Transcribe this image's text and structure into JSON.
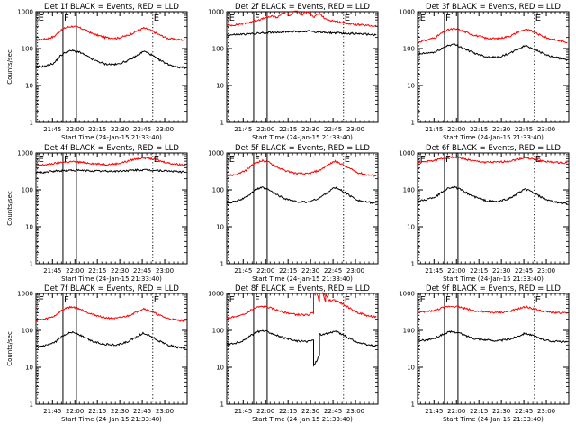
{
  "chart_data": {
    "type": "line",
    "grid": {
      "rows": 3,
      "cols": 3
    },
    "time_ticks": [
      "21:45",
      "22:00",
      "22:15",
      "22:30",
      "22:45",
      "23:00"
    ],
    "time_tick_minutes": [
      105,
      120,
      135,
      150,
      165,
      180
    ],
    "xlim_minutes": [
      94,
      195
    ],
    "yscale": "log",
    "ylim": [
      1,
      1000
    ],
    "y_ticks": [
      1,
      10,
      100,
      1000
    ],
    "y_tick_labels": [
      "1",
      "10",
      "100",
      "1000"
    ],
    "ylabel": "Counts/sec",
    "xlabel": "Start Time (24-Jan-15 21:33:40)",
    "series_colors": {
      "events": "#000000",
      "lld": "#ff0000"
    },
    "markers": [
      {
        "label": "E",
        "minute": 95,
        "style": "dotted"
      },
      {
        "label": "F",
        "minute": 112,
        "style": "solid"
      },
      {
        "label": "",
        "minute": 121,
        "style": "solid"
      },
      {
        "label": "E",
        "minute": 172,
        "style": "dotted"
      }
    ],
    "panels": [
      {
        "title": "Det 1f BLACK = Events, RED = LLD",
        "show_ylabel": true,
        "events": {
          "x": [
            94,
            100,
            106,
            110,
            114,
            118,
            122,
            126,
            132,
            140,
            148,
            156,
            162,
            166,
            170,
            176,
            182,
            188,
            194
          ],
          "y": [
            32,
            33,
            40,
            62,
            80,
            88,
            82,
            70,
            50,
            38,
            37,
            48,
            66,
            85,
            72,
            50,
            38,
            32,
            30
          ]
        },
        "lld": {
          "x": [
            94,
            100,
            106,
            110,
            114,
            118,
            122,
            126,
            132,
            140,
            148,
            156,
            162,
            166,
            170,
            176,
            182,
            188,
            194
          ],
          "y": [
            170,
            180,
            210,
            300,
            370,
            400,
            380,
            330,
            250,
            200,
            190,
            230,
            310,
            360,
            320,
            240,
            190,
            175,
            170
          ]
        }
      },
      {
        "title": "Det 2f BLACK = Events, RED = LLD",
        "show_ylabel": false,
        "events": {
          "x": [
            94,
            100,
            106,
            112,
            118,
            124,
            130,
            136,
            142,
            148,
            154,
            160,
            166,
            172,
            178,
            184,
            190,
            194
          ],
          "y": [
            230,
            240,
            245,
            255,
            265,
            275,
            280,
            290,
            285,
            300,
            280,
            270,
            265,
            260,
            255,
            250,
            240,
            235
          ]
        },
        "lld": {
          "x": [
            94,
            100,
            106,
            112,
            118,
            124,
            128,
            132,
            136,
            140,
            144,
            148,
            152,
            156,
            160,
            164,
            170,
            176,
            182,
            188,
            194
          ],
          "y": [
            420,
            440,
            480,
            560,
            640,
            750,
            700,
            1000,
            750,
            1200,
            800,
            1050,
            700,
            900,
            620,
            580,
            520,
            470,
            440,
            420,
            410
          ]
        }
      },
      {
        "title": "Det 3f BLACK = Events, RED = LLD",
        "show_ylabel": false,
        "events": {
          "x": [
            94,
            100,
            106,
            110,
            114,
            118,
            122,
            126,
            132,
            140,
            148,
            156,
            162,
            166,
            170,
            176,
            182,
            188,
            194
          ],
          "y": [
            70,
            75,
            80,
            100,
            120,
            130,
            115,
            95,
            75,
            60,
            58,
            75,
            100,
            120,
            105,
            80,
            62,
            55,
            50
          ]
        },
        "lld": {
          "x": [
            94,
            100,
            106,
            110,
            114,
            118,
            122,
            126,
            132,
            140,
            148,
            156,
            162,
            166,
            170,
            176,
            182,
            188,
            194
          ],
          "y": [
            150,
            170,
            200,
            260,
            320,
            340,
            320,
            280,
            230,
            190,
            185,
            220,
            290,
            330,
            300,
            230,
            185,
            165,
            150
          ]
        }
      },
      {
        "title": "Det 4f BLACK = Events, RED = LLD",
        "show_ylabel": true,
        "events": {
          "x": [
            94,
            100,
            106,
            112,
            118,
            124,
            130,
            136,
            142,
            148,
            154,
            160,
            166,
            172,
            178,
            184,
            190,
            194
          ],
          "y": [
            290,
            300,
            320,
            330,
            340,
            335,
            330,
            325,
            320,
            320,
            330,
            340,
            345,
            340,
            330,
            320,
            310,
            300
          ]
        },
        "lld": {
          "x": [
            94,
            100,
            106,
            112,
            118,
            124,
            130,
            136,
            142,
            148,
            154,
            160,
            166,
            172,
            178,
            184,
            190,
            194
          ],
          "y": [
            450,
            480,
            520,
            560,
            580,
            560,
            530,
            500,
            490,
            510,
            580,
            680,
            740,
            690,
            590,
            520,
            490,
            470
          ]
        }
      },
      {
        "title": "Det 5f BLACK = Events, RED = LLD",
        "show_ylabel": false,
        "events": {
          "x": [
            94,
            100,
            106,
            110,
            114,
            118,
            122,
            126,
            132,
            140,
            148,
            156,
            162,
            166,
            170,
            176,
            182,
            188,
            194
          ],
          "y": [
            45,
            48,
            60,
            80,
            105,
            115,
            100,
            80,
            60,
            48,
            46,
            60,
            90,
            115,
            100,
            70,
            52,
            46,
            44
          ]
        },
        "lld": {
          "x": [
            94,
            100,
            106,
            110,
            114,
            118,
            122,
            126,
            132,
            140,
            148,
            156,
            162,
            166,
            170,
            176,
            182,
            188,
            194
          ],
          "y": [
            240,
            260,
            320,
            430,
            560,
            620,
            560,
            450,
            340,
            280,
            270,
            340,
            480,
            600,
            520,
            380,
            290,
            255,
            240
          ]
        }
      },
      {
        "title": "Det 6f BLACK = Events, RED = LLD",
        "show_ylabel": false,
        "events": {
          "x": [
            94,
            100,
            106,
            110,
            114,
            118,
            122,
            126,
            132,
            140,
            148,
            156,
            162,
            166,
            170,
            176,
            182,
            188,
            194
          ],
          "y": [
            48,
            55,
            65,
            85,
            110,
            120,
            105,
            85,
            65,
            50,
            48,
            60,
            85,
            105,
            90,
            65,
            50,
            45,
            42
          ]
        },
        "lld": {
          "x": [
            94,
            100,
            106,
            110,
            114,
            118,
            122,
            126,
            132,
            140,
            148,
            156,
            162,
            166,
            170,
            176,
            182,
            188,
            194
          ],
          "y": [
            550,
            580,
            640,
            700,
            760,
            780,
            740,
            680,
            600,
            560,
            560,
            610,
            690,
            750,
            700,
            620,
            570,
            550,
            540
          ]
        }
      },
      {
        "title": "Det 7f BLACK = Events, RED = LLD",
        "show_ylabel": true,
        "events": {
          "x": [
            94,
            100,
            106,
            110,
            114,
            118,
            122,
            126,
            132,
            140,
            148,
            156,
            162,
            166,
            170,
            176,
            182,
            188,
            194
          ],
          "y": [
            35,
            38,
            45,
            62,
            80,
            90,
            80,
            65,
            50,
            42,
            40,
            50,
            70,
            85,
            72,
            52,
            40,
            35,
            32
          ]
        },
        "lld": {
          "x": [
            94,
            100,
            106,
            110,
            114,
            118,
            122,
            126,
            132,
            140,
            148,
            156,
            162,
            166,
            170,
            176,
            182,
            188,
            194
          ],
          "y": [
            190,
            200,
            240,
            320,
            400,
            430,
            400,
            340,
            270,
            220,
            210,
            250,
            330,
            390,
            340,
            260,
            210,
            190,
            180
          ]
        }
      },
      {
        "title": "Det 8f BLACK = Events, RED = LLD",
        "show_ylabel": false,
        "events": {
          "x": [
            94,
            100,
            106,
            110,
            114,
            118,
            122,
            126,
            132,
            140,
            148,
            152,
            152.01,
            154,
            156,
            156.01,
            158,
            162,
            166,
            170,
            176,
            182,
            188,
            194
          ],
          "y": [
            42,
            45,
            55,
            72,
            90,
            98,
            90,
            78,
            62,
            52,
            50,
            55,
            11,
            15,
            22,
            80,
            75,
            85,
            95,
            82,
            60,
            46,
            40,
            38
          ]
        },
        "lld": {
          "x": [
            94,
            100,
            106,
            110,
            114,
            118,
            122,
            126,
            132,
            140,
            148,
            152,
            152.01,
            154,
            156,
            156.01,
            158,
            160,
            160.01,
            162,
            166,
            170,
            176,
            182,
            188,
            194
          ],
          "y": [
            220,
            230,
            270,
            350,
            420,
            440,
            420,
            370,
            310,
            270,
            260,
            300,
            1000,
            1000,
            600,
            1000,
            1000,
            620,
            1000,
            640,
            660,
            560,
            400,
            300,
            250,
            230
          ]
        }
      },
      {
        "title": "Det 9f BLACK = Events, RED = LLD",
        "show_ylabel": false,
        "events": {
          "x": [
            94,
            100,
            106,
            110,
            114,
            118,
            122,
            126,
            132,
            140,
            148,
            156,
            162,
            166,
            170,
            176,
            182,
            188,
            194
          ],
          "y": [
            52,
            55,
            62,
            75,
            88,
            92,
            85,
            72,
            60,
            55,
            52,
            58,
            72,
            85,
            74,
            60,
            52,
            50,
            48
          ]
        },
        "lld": {
          "x": [
            94,
            100,
            106,
            110,
            114,
            118,
            122,
            126,
            132,
            140,
            148,
            156,
            162,
            166,
            170,
            176,
            182,
            188,
            194
          ],
          "y": [
            300,
            320,
            350,
            400,
            440,
            450,
            430,
            390,
            340,
            310,
            300,
            330,
            390,
            430,
            400,
            340,
            310,
            300,
            290
          ]
        }
      }
    ]
  }
}
